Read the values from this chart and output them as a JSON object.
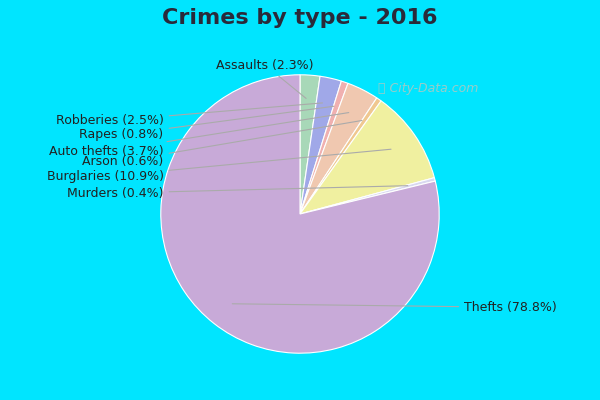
{
  "title": "Crimes by type - 2016",
  "slices": [
    {
      "label": "Thefts (78.8%)",
      "value": 78.8,
      "color": "#c8aad8"
    },
    {
      "label": "Burglaries (10.9%)",
      "value": 10.9,
      "color": "#f0f0a0"
    },
    {
      "label": "Auto thefts (3.7%)",
      "value": 3.7,
      "color": "#f0c8b0"
    },
    {
      "label": "Rapes (0.8%)",
      "value": 0.8,
      "color": "#f0b0b0"
    },
    {
      "label": "Robberies (2.5%)",
      "value": 2.5,
      "color": "#a0a8e8"
    },
    {
      "label": "Assaults (2.3%)",
      "value": 2.3,
      "color": "#a8d8b8"
    },
    {
      "label": "Arson (0.6%)",
      "value": 0.6,
      "color": "#f0c890"
    },
    {
      "label": "Murders (0.4%)",
      "value": 0.4,
      "color": "#d8d8f0"
    }
  ],
  "bg_color_top": "#00e5ff",
  "bg_color_body_top": "#e0f0e8",
  "bg_color_body_bottom": "#c8e8d8",
  "title_fontsize": 16,
  "label_fontsize": 9,
  "title_color": "#2a2a3a",
  "label_color": "#222222"
}
